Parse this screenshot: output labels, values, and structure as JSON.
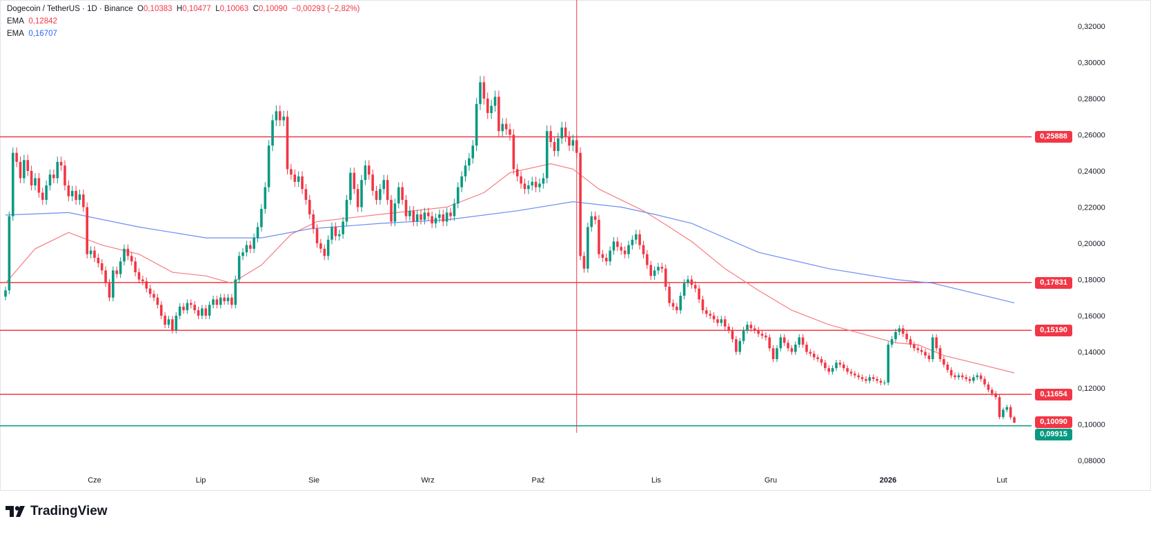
{
  "header": {
    "symbol": "Dogecoin / TetherUS · 1D · Binance",
    "open_label": "O",
    "open": "0,10383",
    "high_label": "H",
    "high": "0,10477",
    "low_label": "L",
    "low": "0,10063",
    "close_label": "C",
    "close": "0,10090",
    "change": "−0,00293 (−2,82%)",
    "ema1_label": "EMA",
    "ema1_value": "0,12842",
    "ema2_label": "EMA",
    "ema2_value": "0,16707"
  },
  "brand": {
    "name": "TradingView"
  },
  "colors": {
    "up": "#089981",
    "down": "#f23645",
    "ema_fast": "#f77c80",
    "ema_slow": "#6b8cf5",
    "level": "#f23645",
    "support": "#089981"
  },
  "chart_data": {
    "type": "candlestick",
    "title": "Dogecoin / TetherUS · 1D · Binance",
    "xlabel": "",
    "ylabel": "",
    "ylim": [
      0.07,
      0.32
    ],
    "y_ticks": [
      "0,32000",
      "0,30000",
      "0,28000",
      "0,26000",
      "0,24000",
      "0,22000",
      "0,20000",
      "0,18000",
      "0,16000",
      "0,14000",
      "0,12000",
      "0,10000",
      "0,08000"
    ],
    "x_ticks": [
      "Cze",
      "Lip",
      "Sie",
      "Wrz",
      "Paź",
      "Lis",
      "Gru",
      "2026",
      "Lut"
    ],
    "grid": false,
    "closes": [
      0.174,
      0.215,
      0.25,
      0.245,
      0.236,
      0.246,
      0.24,
      0.232,
      0.236,
      0.228,
      0.224,
      0.232,
      0.238,
      0.236,
      0.245,
      0.243,
      0.232,
      0.226,
      0.229,
      0.224,
      0.227,
      0.22,
      0.194,
      0.196,
      0.192,
      0.189,
      0.185,
      0.178,
      0.17,
      0.185,
      0.183,
      0.19,
      0.197,
      0.193,
      0.19,
      0.184,
      0.18,
      0.179,
      0.175,
      0.172,
      0.17,
      0.166,
      0.16,
      0.155,
      0.158,
      0.152,
      0.16,
      0.165,
      0.163,
      0.167,
      0.166,
      0.163,
      0.16,
      0.164,
      0.16,
      0.166,
      0.169,
      0.166,
      0.17,
      0.168,
      0.17,
      0.166,
      0.18,
      0.193,
      0.195,
      0.199,
      0.197,
      0.203,
      0.209,
      0.219,
      0.231,
      0.254,
      0.268,
      0.273,
      0.268,
      0.27,
      0.241,
      0.238,
      0.234,
      0.237,
      0.23,
      0.224,
      0.216,
      0.208,
      0.2,
      0.197,
      0.193,
      0.202,
      0.209,
      0.204,
      0.205,
      0.212,
      0.224,
      0.239,
      0.23,
      0.22,
      0.235,
      0.243,
      0.238,
      0.229,
      0.224,
      0.23,
      0.235,
      0.224,
      0.212,
      0.222,
      0.231,
      0.224,
      0.215,
      0.218,
      0.212,
      0.216,
      0.213,
      0.217,
      0.215,
      0.211,
      0.214,
      0.216,
      0.212,
      0.217,
      0.215,
      0.222,
      0.231,
      0.237,
      0.243,
      0.247,
      0.254,
      0.277,
      0.289,
      0.28,
      0.272,
      0.276,
      0.281,
      0.262,
      0.266,
      0.263,
      0.26,
      0.241,
      0.237,
      0.233,
      0.23,
      0.232,
      0.234,
      0.231,
      0.233,
      0.236,
      0.262,
      0.256,
      0.251,
      0.258,
      0.264,
      0.259,
      0.254,
      0.257,
      0.25,
      0.193,
      0.186,
      0.209,
      0.215,
      0.213,
      0.194,
      0.192,
      0.19,
      0.196,
      0.201,
      0.198,
      0.196,
      0.194,
      0.199,
      0.202,
      0.205,
      0.199,
      0.194,
      0.188,
      0.182,
      0.185,
      0.187,
      0.186,
      0.176,
      0.167,
      0.165,
      0.163,
      0.171,
      0.178,
      0.18,
      0.177,
      0.175,
      0.169,
      0.163,
      0.161,
      0.16,
      0.158,
      0.156,
      0.158,
      0.154,
      0.152,
      0.147,
      0.14,
      0.146,
      0.152,
      0.155,
      0.153,
      0.152,
      0.15,
      0.149,
      0.148,
      0.142,
      0.136,
      0.142,
      0.148,
      0.145,
      0.142,
      0.14,
      0.144,
      0.148,
      0.144,
      0.14,
      0.139,
      0.137,
      0.136,
      0.134,
      0.131,
      0.129,
      0.131,
      0.134,
      0.133,
      0.131,
      0.129,
      0.128,
      0.127,
      0.126,
      0.125,
      0.124,
      0.126,
      0.125,
      0.124,
      0.123,
      0.123,
      0.144,
      0.147,
      0.151,
      0.153,
      0.15,
      0.147,
      0.144,
      0.142,
      0.141,
      0.14,
      0.138,
      0.136,
      0.148,
      0.142,
      0.136,
      0.133,
      0.13,
      0.127,
      0.126,
      0.127,
      0.126,
      0.125,
      0.124,
      0.126,
      0.127,
      0.125,
      0.122,
      0.119,
      0.117,
      0.115,
      0.104,
      0.108,
      0.1095,
      0.10383,
      0.1009
    ],
    "last_candle": {
      "open": 0.10383,
      "high": 0.10477,
      "low": 0.10063,
      "close": 0.1009
    },
    "series": [
      {
        "name": "EMA",
        "value_label": "0,12842",
        "color": "#f77c80",
        "points": [
          [
            "2025-05-09",
            0.178
          ],
          [
            "2025-05-17",
            0.197
          ],
          [
            "2025-05-26",
            0.206
          ],
          [
            "2025-06-04",
            0.199
          ],
          [
            "2025-06-14",
            0.194
          ],
          [
            "2025-06-23",
            0.184
          ],
          [
            "2025-07-02",
            0.182
          ],
          [
            "2025-07-09",
            0.178
          ],
          [
            "2025-07-17",
            0.188
          ],
          [
            "2025-07-25",
            0.205
          ],
          [
            "2025-08-01",
            0.212
          ],
          [
            "2025-08-18",
            0.216
          ],
          [
            "2025-09-05",
            0.22
          ],
          [
            "2025-09-15",
            0.228
          ],
          [
            "2025-09-22",
            0.239
          ],
          [
            "2025-10-03",
            0.244
          ],
          [
            "2025-10-09",
            0.241
          ],
          [
            "2025-10-16",
            0.23
          ],
          [
            "2025-10-28",
            0.218
          ],
          [
            "2025-11-04",
            0.209
          ],
          [
            "2025-11-10",
            0.201
          ],
          [
            "2025-11-19",
            0.186
          ],
          [
            "2025-11-28",
            0.174
          ],
          [
            "2025-12-07",
            0.163
          ],
          [
            "2025-12-17",
            0.155
          ],
          [
            "2025-12-26",
            0.15
          ],
          [
            "2026-01-04",
            0.145
          ],
          [
            "2026-01-10",
            0.144
          ],
          [
            "2026-01-17",
            0.138
          ],
          [
            "2026-01-27",
            0.133
          ],
          [
            "2026-02-05",
            0.1284
          ]
        ]
      },
      {
        "name": "EMA",
        "value_label": "0,16707",
        "color": "#6b8cf5",
        "points": [
          [
            "2025-05-09",
            0.2156
          ],
          [
            "2025-05-26",
            0.217
          ],
          [
            "2025-06-14",
            0.209
          ],
          [
            "2025-07-02",
            0.203
          ],
          [
            "2025-07-17",
            0.203
          ],
          [
            "2025-07-30",
            0.208
          ],
          [
            "2025-08-18",
            0.211
          ],
          [
            "2025-09-05",
            0.213
          ],
          [
            "2025-09-24",
            0.218
          ],
          [
            "2025-10-09",
            0.223
          ],
          [
            "2025-10-22",
            0.22
          ],
          [
            "2025-10-31",
            0.216
          ],
          [
            "2025-11-10",
            0.211
          ],
          [
            "2025-11-28",
            0.195
          ],
          [
            "2025-12-17",
            0.186
          ],
          [
            "2026-01-04",
            0.18
          ],
          [
            "2026-01-14",
            0.178
          ],
          [
            "2026-02-05",
            0.1671
          ]
        ]
      }
    ],
    "levels": [
      {
        "value": 0.25888,
        "label": "0,25888",
        "kind": "resistance"
      },
      {
        "value": 0.17831,
        "label": "0,17831",
        "kind": "resistance"
      },
      {
        "value": 0.1519,
        "label": "0,15190",
        "kind": "resistance"
      },
      {
        "value": 0.11654,
        "label": "0,11654",
        "kind": "resistance"
      },
      {
        "value": 0.09915,
        "label": "0,09915",
        "kind": "support"
      }
    ],
    "last_price_label": "0,10090",
    "vertical_marker_date": "2025-10-10"
  }
}
